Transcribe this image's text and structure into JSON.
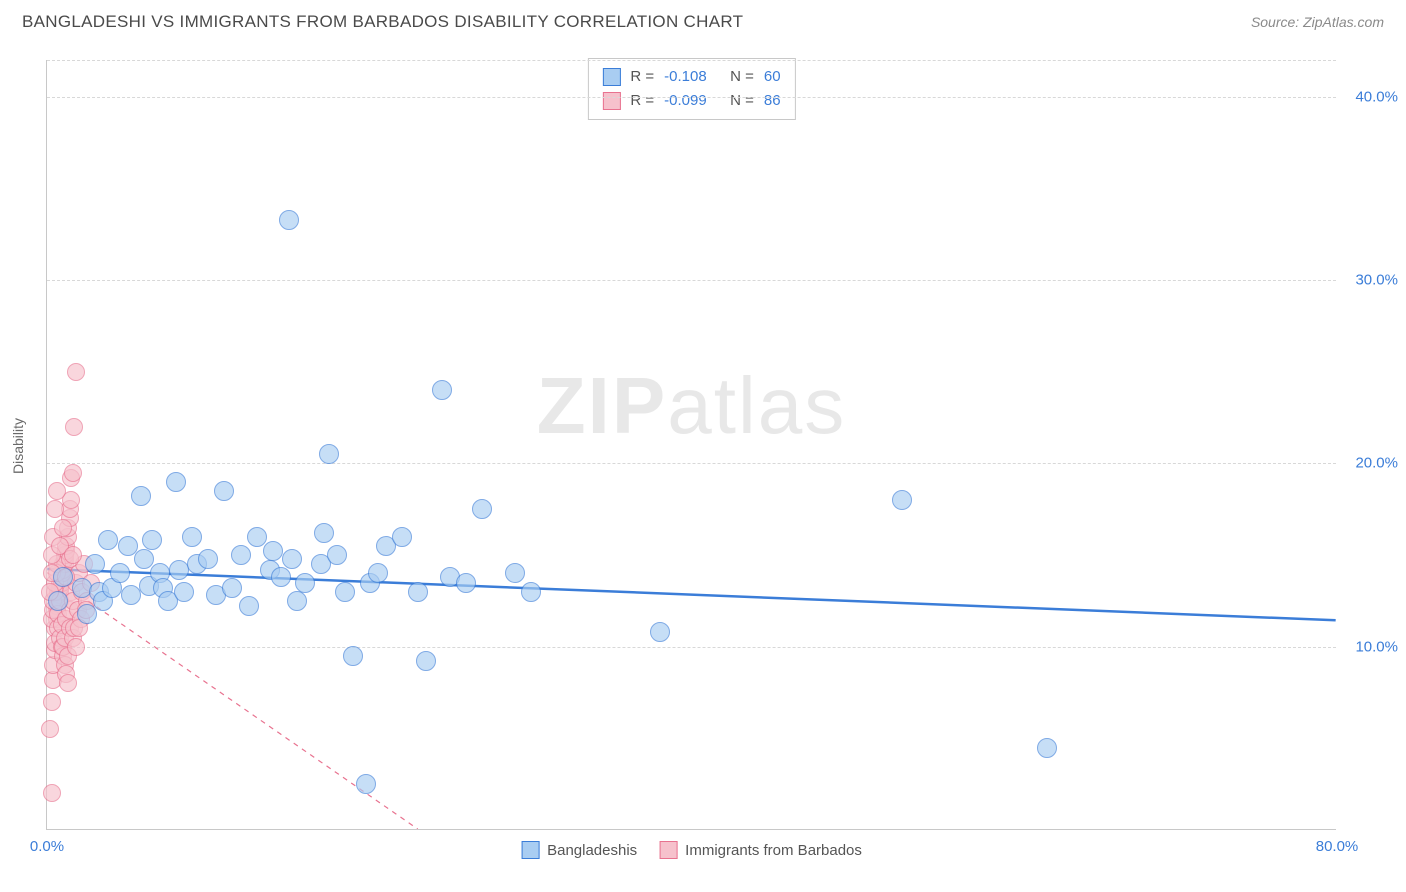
{
  "header": {
    "title": "BANGLADESHI VS IMMIGRANTS FROM BARBADOS DISABILITY CORRELATION CHART",
    "source": "Source: ZipAtlas.com"
  },
  "ylabel": "Disability",
  "watermark": {
    "bold": "ZIP",
    "light": "atlas"
  },
  "axes": {
    "xmin": 0,
    "xmax": 80,
    "ymin": 0,
    "ymax": 42,
    "xticks": [
      0,
      80
    ],
    "xtick_labels": [
      "0.0%",
      "80.0%"
    ],
    "ygrid": [
      10,
      20,
      30,
      40
    ],
    "ytick_labels": [
      "10.0%",
      "20.0%",
      "30.0%",
      "40.0%"
    ]
  },
  "colors": {
    "blue_fill": "#a9cdf2",
    "blue_stroke": "#3b7dd8",
    "pink_fill": "#f6c1cc",
    "pink_stroke": "#e8728f",
    "grid": "#d8d8d8",
    "axis": "#c8c8c8",
    "tick_text": "#3b7dd8",
    "title_text": "#4a4a4a",
    "background": "#ffffff"
  },
  "marker": {
    "radius_blue": 10,
    "radius_pink": 9,
    "opacity": 0.65
  },
  "legend_top": {
    "rows": [
      {
        "swatch": "blue",
        "r_label": "R =",
        "r": "-0.108",
        "n_label": "N =",
        "n": "60"
      },
      {
        "swatch": "pink",
        "r_label": "R =",
        "r": "-0.099",
        "n_label": "N =",
        "n": "86"
      }
    ]
  },
  "legend_bottom": {
    "items": [
      {
        "swatch": "blue",
        "label": "Bangladeshis"
      },
      {
        "swatch": "pink",
        "label": "Immigrants from Barbados"
      }
    ]
  },
  "series": {
    "blue": {
      "trend": {
        "x1": 0,
        "y1": 14.2,
        "x2": 80,
        "y2": 11.4,
        "width": 2.5,
        "dash": "none",
        "color": "#3b7dd8"
      },
      "points": [
        [
          2.2,
          13.2
        ],
        [
          2.5,
          11.8
        ],
        [
          3.0,
          14.5
        ],
        [
          3.2,
          13.0
        ],
        [
          3.5,
          12.5
        ],
        [
          3.8,
          15.8
        ],
        [
          4.0,
          13.2
        ],
        [
          4.5,
          14.0
        ],
        [
          5.0,
          15.5
        ],
        [
          5.2,
          12.8
        ],
        [
          5.8,
          18.2
        ],
        [
          6.0,
          14.8
        ],
        [
          6.3,
          13.3
        ],
        [
          6.5,
          15.8
        ],
        [
          7.0,
          14.0
        ],
        [
          7.2,
          13.2
        ],
        [
          7.5,
          12.5
        ],
        [
          8.0,
          19.0
        ],
        [
          8.2,
          14.2
        ],
        [
          8.5,
          13.0
        ],
        [
          9.0,
          16.0
        ],
        [
          9.3,
          14.5
        ],
        [
          10.0,
          14.8
        ],
        [
          10.5,
          12.8
        ],
        [
          11.0,
          18.5
        ],
        [
          11.5,
          13.2
        ],
        [
          12.0,
          15.0
        ],
        [
          12.5,
          12.2
        ],
        [
          13.0,
          16.0
        ],
        [
          13.8,
          14.2
        ],
        [
          14.0,
          15.2
        ],
        [
          14.5,
          13.8
        ],
        [
          15.0,
          33.3
        ],
        [
          15.2,
          14.8
        ],
        [
          15.5,
          12.5
        ],
        [
          16.0,
          13.5
        ],
        [
          17.0,
          14.5
        ],
        [
          17.2,
          16.2
        ],
        [
          17.5,
          20.5
        ],
        [
          18.0,
          15.0
        ],
        [
          18.5,
          13.0
        ],
        [
          19.0,
          9.5
        ],
        [
          19.8,
          2.5
        ],
        [
          20.0,
          13.5
        ],
        [
          20.5,
          14.0
        ],
        [
          21.0,
          15.5
        ],
        [
          22.0,
          16.0
        ],
        [
          23.0,
          13.0
        ],
        [
          23.5,
          9.2
        ],
        [
          24.5,
          24.0
        ],
        [
          25.0,
          13.8
        ],
        [
          26.0,
          13.5
        ],
        [
          27.0,
          17.5
        ],
        [
          29.0,
          14.0
        ],
        [
          30.0,
          13.0
        ],
        [
          38.0,
          10.8
        ],
        [
          53.0,
          18.0
        ],
        [
          62.0,
          4.5
        ],
        [
          0.7,
          12.5
        ],
        [
          1.0,
          13.8
        ]
      ]
    },
    "pink": {
      "trend": {
        "x1": 0,
        "y1": 14.0,
        "x2": 23,
        "y2": 0,
        "width": 1.2,
        "dash": "5,5",
        "color": "#e8728f"
      },
      "points": [
        [
          0.2,
          5.5
        ],
        [
          0.3,
          2.0
        ],
        [
          0.3,
          7.0
        ],
        [
          0.4,
          8.2
        ],
        [
          0.4,
          9.0
        ],
        [
          0.5,
          9.8
        ],
        [
          0.5,
          10.2
        ],
        [
          0.5,
          11.0
        ],
        [
          0.6,
          11.5
        ],
        [
          0.6,
          12.0
        ],
        [
          0.6,
          12.2
        ],
        [
          0.7,
          12.5
        ],
        [
          0.7,
          12.8
        ],
        [
          0.7,
          13.0
        ],
        [
          0.8,
          13.0
        ],
        [
          0.8,
          13.2
        ],
        [
          0.8,
          13.5
        ],
        [
          0.9,
          13.5
        ],
        [
          0.9,
          13.8
        ],
        [
          0.9,
          14.0
        ],
        [
          1.0,
          14.0
        ],
        [
          1.0,
          14.2
        ],
        [
          1.0,
          14.5
        ],
        [
          1.1,
          14.5
        ],
        [
          1.1,
          14.8
        ],
        [
          1.1,
          15.0
        ],
        [
          1.2,
          15.2
        ],
        [
          1.2,
          15.5
        ],
        [
          1.3,
          16.0
        ],
        [
          1.3,
          16.5
        ],
        [
          1.4,
          17.0
        ],
        [
          1.4,
          17.5
        ],
        [
          1.5,
          18.0
        ],
        [
          1.5,
          19.2
        ],
        [
          1.6,
          19.5
        ],
        [
          1.7,
          22.0
        ],
        [
          1.8,
          25.0
        ],
        [
          0.3,
          11.5
        ],
        [
          0.4,
          12.0
        ],
        [
          0.4,
          12.5
        ],
        [
          0.5,
          13.0
        ],
        [
          0.5,
          13.5
        ],
        [
          0.6,
          14.0
        ],
        [
          0.6,
          14.5
        ],
        [
          0.7,
          11.0
        ],
        [
          0.7,
          11.8
        ],
        [
          0.8,
          10.5
        ],
        [
          0.8,
          12.5
        ],
        [
          0.9,
          10.0
        ],
        [
          0.9,
          11.2
        ],
        [
          1.0,
          9.5
        ],
        [
          1.0,
          10.0
        ],
        [
          1.1,
          9.0
        ],
        [
          1.1,
          10.5
        ],
        [
          1.2,
          8.5
        ],
        [
          1.2,
          11.5
        ],
        [
          1.3,
          8.0
        ],
        [
          1.3,
          9.5
        ],
        [
          1.4,
          11.0
        ],
        [
          1.4,
          12.0
        ],
        [
          1.5,
          13.0
        ],
        [
          1.6,
          10.5
        ],
        [
          1.6,
          12.5
        ],
        [
          1.7,
          11.0
        ],
        [
          1.8,
          13.5
        ],
        [
          1.9,
          12.0
        ],
        [
          2.0,
          14.0
        ],
        [
          2.1,
          11.5
        ],
        [
          2.2,
          13.0
        ],
        [
          2.3,
          14.5
        ],
        [
          2.5,
          12.5
        ],
        [
          2.7,
          13.5
        ],
        [
          0.2,
          13.0
        ],
        [
          0.3,
          14.0
        ],
        [
          0.3,
          15.0
        ],
        [
          0.4,
          16.0
        ],
        [
          0.5,
          17.5
        ],
        [
          0.6,
          18.5
        ],
        [
          0.8,
          15.5
        ],
        [
          1.0,
          16.5
        ],
        [
          1.2,
          13.8
        ],
        [
          1.4,
          14.8
        ],
        [
          1.6,
          15.0
        ],
        [
          1.8,
          10.0
        ],
        [
          2.0,
          11.0
        ],
        [
          2.4,
          12.0
        ]
      ]
    }
  }
}
